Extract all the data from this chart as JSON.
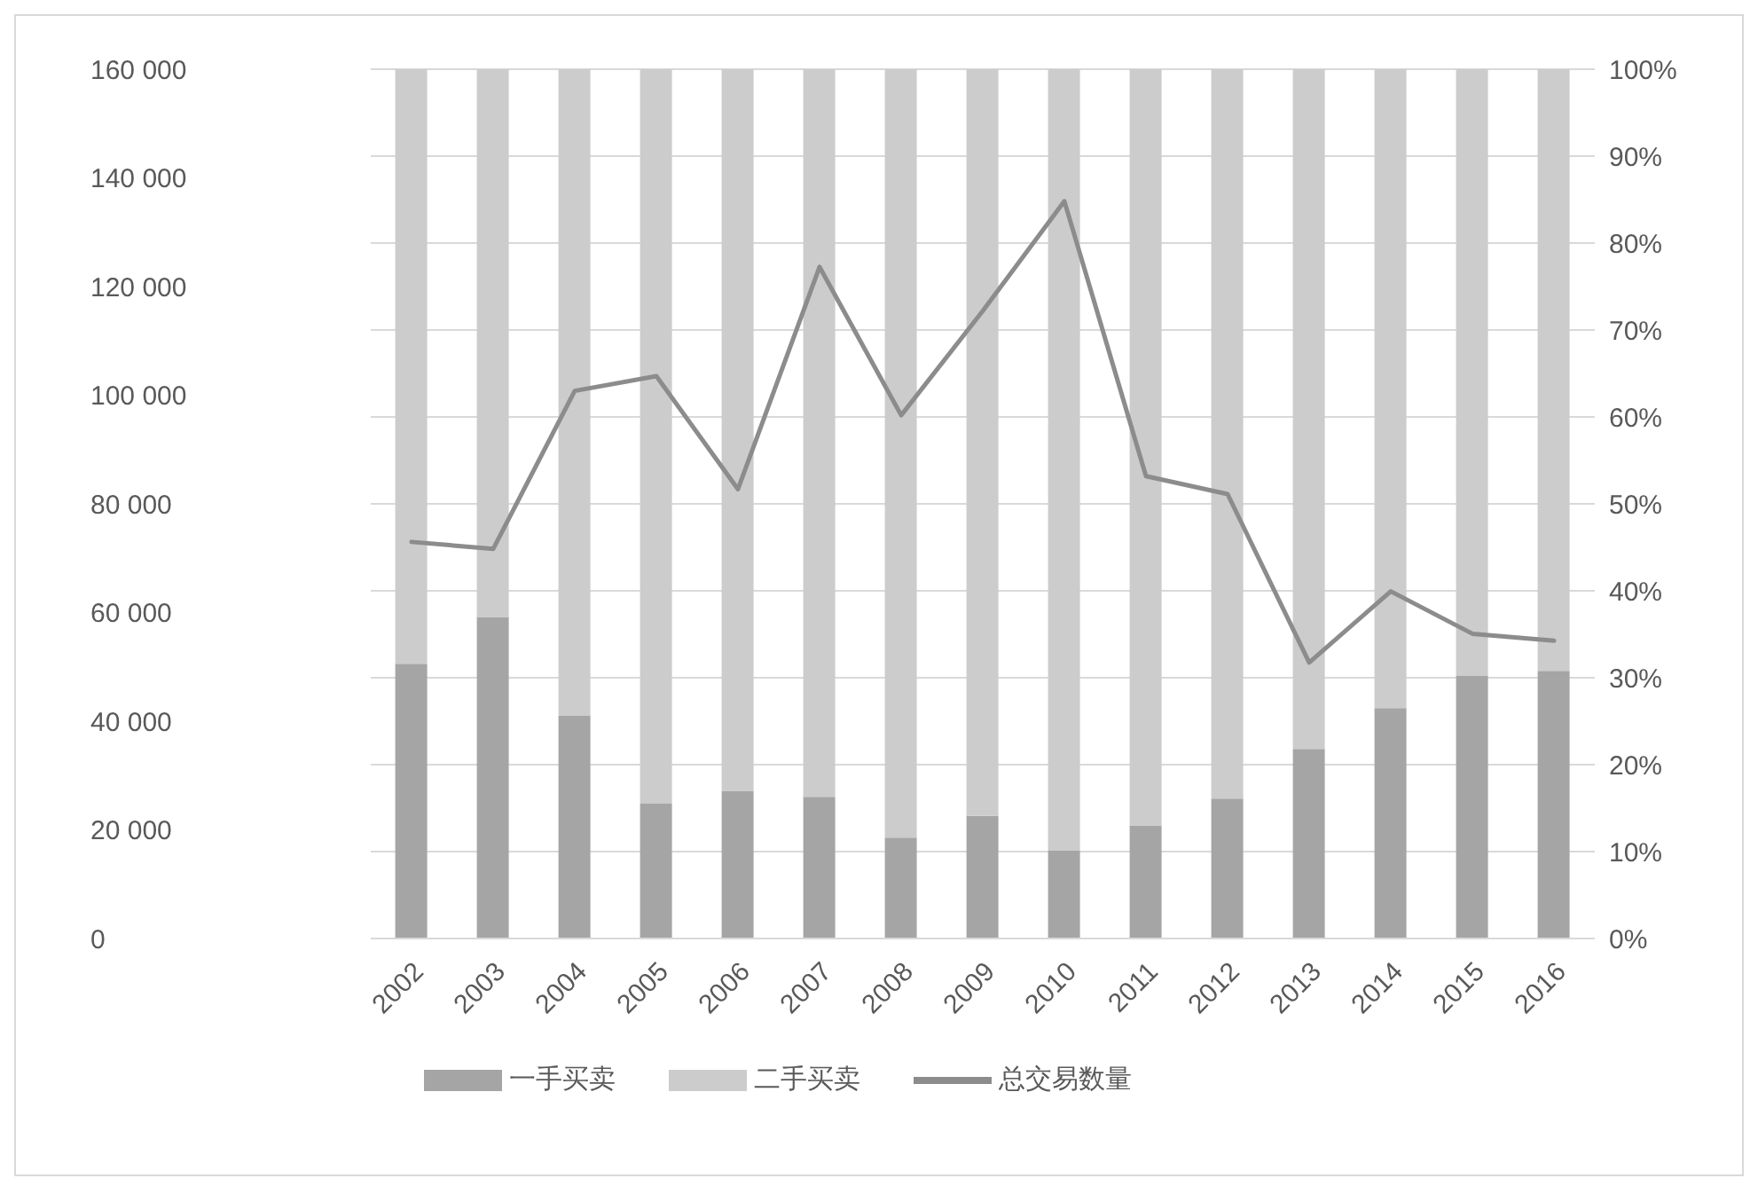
{
  "chart_data": {
    "type": "bar",
    "stacked": true,
    "categories": [
      "2002",
      "2003",
      "2004",
      "2005",
      "2006",
      "2007",
      "2008",
      "2009",
      "2010",
      "2011",
      "2012",
      "2013",
      "2014",
      "2015",
      "2016"
    ],
    "series": [
      {
        "name": "一手买卖",
        "color": "#a5a5a5",
        "axis": "y2",
        "values": [
          31.6,
          37.0,
          25.6,
          15.5,
          17.0,
          16.3,
          11.6,
          14.1,
          10.1,
          13.0,
          16.1,
          21.8,
          26.5,
          30.2,
          30.8
        ]
      },
      {
        "name": "二手买卖",
        "color": "#cccccc",
        "axis": "y2",
        "values": [
          68.4,
          63.0,
          74.4,
          84.5,
          83.0,
          83.7,
          88.4,
          85.9,
          89.9,
          87.0,
          83.9,
          78.2,
          73.5,
          69.8,
          69.2
        ]
      },
      {
        "name": "总交易数量",
        "type": "line",
        "color": "#8c8c8c",
        "values": [
          73000,
          71700,
          100800,
          103500,
          82700,
          123600,
          96300,
          115500,
          135700,
          85100,
          81800,
          50800,
          63900,
          56100,
          54800
        ]
      }
    ],
    "ylim": [
      0,
      160000
    ],
    "yticks": [
      {
        "value": 0,
        "label": "0"
      },
      {
        "value": 20000,
        "label": "20 000"
      },
      {
        "value": 40000,
        "label": "40 000"
      },
      {
        "value": 60000,
        "label": "60 000"
      },
      {
        "value": 80000,
        "label": "80 000"
      },
      {
        "value": 100000,
        "label": "100 000"
      },
      {
        "value": 120000,
        "label": "120 000"
      },
      {
        "value": 140000,
        "label": "140 000"
      },
      {
        "value": 160000,
        "label": "160 000"
      }
    ],
    "y2lim": [
      0,
      100
    ],
    "y2ticks": [
      {
        "value": 0,
        "label": "0%"
      },
      {
        "value": 10,
        "label": "10%"
      },
      {
        "value": 20,
        "label": "20%"
      },
      {
        "value": 30,
        "label": "30%"
      },
      {
        "value": 40,
        "label": "40%"
      },
      {
        "value": 50,
        "label": "50%"
      },
      {
        "value": 60,
        "label": "60%"
      },
      {
        "value": 70,
        "label": "70%"
      },
      {
        "value": 80,
        "label": "80%"
      },
      {
        "value": 90,
        "label": "90%"
      },
      {
        "value": 100,
        "label": "100%"
      }
    ],
    "grid": "y",
    "legend": "bottom",
    "marker": "none",
    "line_style": "solid"
  }
}
